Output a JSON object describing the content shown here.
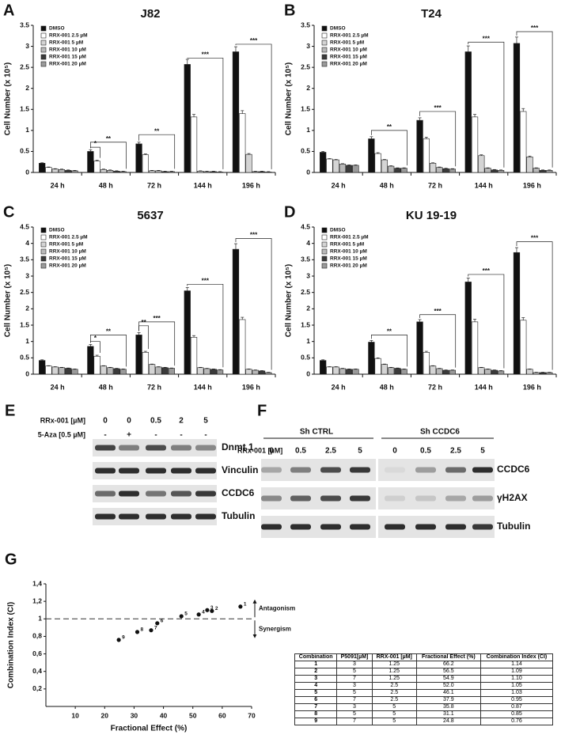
{
  "chart_data": [
    {
      "type": "bar",
      "label": "A",
      "title": "J82",
      "y_label": "Cell Number (x 10⁵)",
      "categories": [
        "24 h",
        "48 h",
        "72 h",
        "144 h",
        "196 h"
      ],
      "ylim": [
        0,
        3.5
      ],
      "yticks": [
        0,
        0.5,
        1,
        1.5,
        2,
        2.5,
        3,
        3.5
      ],
      "series": [
        {
          "name": "DMSO",
          "color": "#111111",
          "values": [
            0.22,
            0.5,
            0.68,
            2.57,
            2.87
          ],
          "errors": [
            0.01,
            0.04,
            0.04,
            0.12,
            0.12
          ]
        },
        {
          "name": "RRX-001 2.5 µM",
          "color": "#ffffff",
          "values": [
            0.12,
            0.27,
            0.42,
            1.32,
            1.4
          ],
          "errors": [
            0.01,
            0.02,
            0.02,
            0.06,
            0.07
          ]
        },
        {
          "name": "RRX-001 5 µM",
          "color": "#d4d4d4",
          "values": [
            0.08,
            0.07,
            0.04,
            0.03,
            0.43
          ],
          "errors": [
            0.01,
            0.01,
            0.01,
            0.01,
            0.02
          ]
        },
        {
          "name": "RRX-001 10 µM",
          "color": "#b8b8b8",
          "values": [
            0.07,
            0.05,
            0.04,
            0.02,
            0.02
          ],
          "errors": [
            0.01,
            0.01,
            0.01,
            0.01,
            0.01
          ]
        },
        {
          "name": "RRX-001 15 µM",
          "color": "#3a3a3a",
          "values": [
            0.05,
            0.03,
            0.02,
            0.02,
            0.02
          ],
          "errors": [
            0.01,
            0.01,
            0.01,
            0.01,
            0.01
          ]
        },
        {
          "name": "RRX-001 20 µM",
          "color": "#9a9a9a",
          "values": [
            0.04,
            0.02,
            0.02,
            0.01,
            0.01
          ],
          "errors": [
            0.01,
            0.01,
            0.01,
            0.01,
            0.01
          ]
        }
      ],
      "annotations": [
        {
          "text": "*",
          "category": 1,
          "series_span": [
            0,
            1
          ],
          "y": 0.6
        },
        {
          "text": "**",
          "category": 1,
          "series_span": [
            0,
            5
          ],
          "y": 0.72
        },
        {
          "text": "**",
          "category": 2,
          "series_span": [
            0,
            5
          ],
          "y": 0.9
        },
        {
          "text": "***",
          "category": 3,
          "series_span": [
            0,
            5
          ],
          "y": 2.72
        },
        {
          "text": "***",
          "category": 4,
          "series_span": [
            0,
            5
          ],
          "y": 3.05
        }
      ]
    },
    {
      "type": "bar",
      "label": "B",
      "title": "T24",
      "y_label": "Cell Number (x 10⁵)",
      "categories": [
        "24 h",
        "48 h",
        "72 h",
        "144 h",
        "196 h"
      ],
      "ylim": [
        0,
        3.5
      ],
      "yticks": [
        0,
        0.5,
        1,
        1.5,
        2,
        2.5,
        3,
        3.5
      ],
      "series": [
        {
          "name": "DMSO",
          "color": "#111111",
          "values": [
            0.48,
            0.8,
            1.24,
            2.87,
            3.07
          ],
          "errors": [
            0.02,
            0.05,
            0.06,
            0.14,
            0.15
          ]
        },
        {
          "name": "RRX-001 2.5 µM",
          "color": "#ffffff",
          "values": [
            0.32,
            0.45,
            0.8,
            1.32,
            1.45
          ],
          "errors": [
            0.01,
            0.02,
            0.04,
            0.06,
            0.07
          ]
        },
        {
          "name": "RRX-001 5 µM",
          "color": "#d4d4d4",
          "values": [
            0.3,
            0.3,
            0.22,
            0.4,
            0.37
          ],
          "errors": [
            0.01,
            0.01,
            0.01,
            0.02,
            0.02
          ]
        },
        {
          "name": "RRX-001 10 µM",
          "color": "#b8b8b8",
          "values": [
            0.2,
            0.15,
            0.12,
            0.1,
            0.1
          ],
          "errors": [
            0.01,
            0.01,
            0.01,
            0.01,
            0.01
          ]
        },
        {
          "name": "RRX-001 15 µM",
          "color": "#3a3a3a",
          "values": [
            0.17,
            0.1,
            0.09,
            0.06,
            0.05
          ],
          "errors": [
            0.01,
            0.01,
            0.01,
            0.01,
            0.01
          ]
        },
        {
          "name": "RRX-001 20 µM",
          "color": "#9a9a9a",
          "values": [
            0.17,
            0.1,
            0.08,
            0.05,
            0.05
          ],
          "errors": [
            0.01,
            0.01,
            0.01,
            0.01,
            0.01
          ]
        }
      ],
      "annotations": [
        {
          "text": "**",
          "category": 1,
          "series_span": [
            0,
            5
          ],
          "y": 1.0
        },
        {
          "text": "***",
          "category": 2,
          "series_span": [
            0,
            5
          ],
          "y": 1.45
        },
        {
          "text": "***",
          "category": 3,
          "series_span": [
            0,
            5
          ],
          "y": 3.1
        },
        {
          "text": "***",
          "category": 4,
          "series_span": [
            0,
            5
          ],
          "y": 3.35
        }
      ]
    },
    {
      "type": "bar",
      "label": "C",
      "title": "5637",
      "y_label": "Cell Number (x 10⁵)",
      "categories": [
        "24 h",
        "48 h",
        "72 h",
        "144 h",
        "196 h"
      ],
      "ylim": [
        0,
        4.5
      ],
      "yticks": [
        0,
        0.5,
        1,
        1.5,
        2,
        2.5,
        3,
        3.5,
        4,
        4.5
      ],
      "series": [
        {
          "name": "DMSO",
          "color": "#111111",
          "values": [
            0.42,
            0.85,
            1.2,
            2.55,
            3.82
          ],
          "errors": [
            0.02,
            0.06,
            0.07,
            0.1,
            0.17
          ]
        },
        {
          "name": "RRX-001 2.5 µM",
          "color": "#ffffff",
          "values": [
            0.25,
            0.55,
            0.67,
            1.13,
            1.67
          ],
          "errors": [
            0.01,
            0.03,
            0.03,
            0.05,
            0.07
          ]
        },
        {
          "name": "RRX-001 5 µM",
          "color": "#d4d4d4",
          "values": [
            0.22,
            0.25,
            0.3,
            0.2,
            0.15
          ],
          "errors": [
            0.01,
            0.01,
            0.01,
            0.01,
            0.01
          ]
        },
        {
          "name": "RRX-001 10 µM",
          "color": "#b8b8b8",
          "values": [
            0.2,
            0.2,
            0.22,
            0.17,
            0.12
          ],
          "errors": [
            0.01,
            0.01,
            0.01,
            0.01,
            0.01
          ]
        },
        {
          "name": "RRX-001 15 µM",
          "color": "#3a3a3a",
          "values": [
            0.18,
            0.17,
            0.2,
            0.15,
            0.1
          ],
          "errors": [
            0.01,
            0.01,
            0.01,
            0.01,
            0.01
          ]
        },
        {
          "name": "RRX-001 20 µM",
          "color": "#9a9a9a",
          "values": [
            0.15,
            0.15,
            0.18,
            0.13,
            0.05
          ],
          "errors": [
            0.01,
            0.01,
            0.01,
            0.01,
            0.01
          ]
        }
      ],
      "annotations": [
        {
          "text": "*",
          "category": 1,
          "series_span": [
            0,
            1
          ],
          "y": 1.0
        },
        {
          "text": "**",
          "category": 1,
          "series_span": [
            0,
            5
          ],
          "y": 1.2
        },
        {
          "text": "**",
          "category": 2,
          "series_span": [
            0,
            1
          ],
          "y": 1.48
        },
        {
          "text": "***",
          "category": 2,
          "series_span": [
            0,
            5
          ],
          "y": 1.6
        },
        {
          "text": "***",
          "category": 3,
          "series_span": [
            0,
            5
          ],
          "y": 2.75
        },
        {
          "text": "***",
          "category": 4,
          "series_span": [
            0,
            5
          ],
          "y": 4.15
        }
      ]
    },
    {
      "type": "bar",
      "label": "D",
      "title": "KU 19-19",
      "y_label": "Cell Number (x 10⁵)",
      "categories": [
        "24 h",
        "48 h",
        "72 h",
        "144 h",
        "196 h"
      ],
      "ylim": [
        0,
        4.5
      ],
      "yticks": [
        0,
        0.5,
        1,
        1.5,
        2,
        2.5,
        3,
        3.5,
        4,
        4.5
      ],
      "series": [
        {
          "name": "DMSO",
          "color": "#111111",
          "values": [
            0.42,
            0.98,
            1.6,
            2.82,
            3.72
          ],
          "errors": [
            0.02,
            0.05,
            0.07,
            0.12,
            0.15
          ]
        },
        {
          "name": "RRX-001 2.5 µM",
          "color": "#ffffff",
          "values": [
            0.22,
            0.48,
            0.67,
            1.6,
            1.65
          ],
          "errors": [
            0.01,
            0.02,
            0.03,
            0.08,
            0.08
          ]
        },
        {
          "name": "RRX-001 5 µM",
          "color": "#d4d4d4",
          "values": [
            0.22,
            0.3,
            0.25,
            0.2,
            0.15
          ],
          "errors": [
            0.01,
            0.01,
            0.01,
            0.01,
            0.01
          ]
        },
        {
          "name": "RRX-001 10 µM",
          "color": "#b8b8b8",
          "values": [
            0.17,
            0.2,
            0.17,
            0.15,
            0.05
          ],
          "errors": [
            0.01,
            0.01,
            0.01,
            0.01,
            0.01
          ]
        },
        {
          "name": "RRX-001 15 µM",
          "color": "#3a3a3a",
          "values": [
            0.15,
            0.18,
            0.12,
            0.12,
            0.05
          ],
          "errors": [
            0.01,
            0.01,
            0.01,
            0.01,
            0.01
          ]
        },
        {
          "name": "RRX-001 20 µM",
          "color": "#9a9a9a",
          "values": [
            0.15,
            0.15,
            0.12,
            0.1,
            0.05
          ],
          "errors": [
            0.01,
            0.01,
            0.01,
            0.01,
            0.01
          ]
        }
      ],
      "annotations": [
        {
          "text": "**",
          "category": 1,
          "series_span": [
            0,
            5
          ],
          "y": 1.2
        },
        {
          "text": "***",
          "category": 2,
          "series_span": [
            0,
            5
          ],
          "y": 1.82
        },
        {
          "text": "***",
          "category": 3,
          "series_span": [
            0,
            5
          ],
          "y": 3.05
        },
        {
          "text": "***",
          "category": 4,
          "series_span": [
            0,
            5
          ],
          "y": 4.05
        }
      ]
    },
    {
      "type": "scatter",
      "label": "G",
      "x_label": "Fractional Effect (%)",
      "y_label": "Combination Index (CI)",
      "x": [
        66.2,
        56.5,
        54.9,
        52.0,
        46.1,
        37.9,
        35.8,
        31.1,
        24.8
      ],
      "values": [
        1.14,
        1.09,
        1.1,
        1.05,
        1.03,
        0.95,
        0.87,
        0.85,
        0.76
      ],
      "point_labels": [
        "1",
        "2",
        "3",
        "4",
        "5",
        "6",
        "7",
        "8",
        "9"
      ],
      "color": "#111111",
      "xlim": [
        0,
        70
      ],
      "xticks": [
        10,
        20,
        30,
        40,
        50,
        60,
        70
      ],
      "ylim": [
        0,
        1.4
      ],
      "yticks": [
        {
          "value": 0.2,
          "label": "0,2"
        },
        {
          "value": 0.4,
          "label": "0,4"
        },
        {
          "value": 0.6,
          "label": "0,6"
        },
        {
          "value": 0.8,
          "label": "0,8"
        },
        1,
        {
          "value": 1.2,
          "label": "1,2"
        },
        {
          "value": 1.4,
          "label": "1,4"
        }
      ],
      "reference_line": 1,
      "annotations": [
        "Antagonism",
        "Synergism"
      ]
    }
  ],
  "blot_E": {
    "label": "E",
    "treatments": [
      {
        "name": "RRx-001 [µM]",
        "levels": [
          "0",
          "0",
          "0.5",
          "2",
          "5"
        ]
      },
      {
        "name": "5-Aza [0.5 µM]",
        "levels": [
          "-",
          "+",
          "-",
          "-",
          "-"
        ]
      }
    ],
    "bands": [
      "Dnmt 1",
      "Vinculin",
      "CCDC6",
      "Tubulin"
    ]
  },
  "blot_F": {
    "label": "F",
    "groups": [
      "Sh CTRL",
      "Sh CCDC6"
    ],
    "treatment": "RRx-001 [µM]",
    "levels": [
      "0",
      "0.5",
      "2.5",
      "5",
      "0",
      "0.5",
      "2.5",
      "5"
    ],
    "bands": [
      "CCDC6",
      "γH2AX",
      "Tubulin"
    ]
  },
  "table_G": {
    "header": [
      "Combination",
      "P5091[µM]",
      "RRX-001 [µM]",
      "Fractional Effect (%)",
      "Combination Index (CI)"
    ],
    "rows": [
      [
        "1",
        "3",
        "1.25",
        "66.2",
        "1.14"
      ],
      [
        "2",
        "5",
        "1.25",
        "56.5",
        "1.09"
      ],
      [
        "3",
        "7",
        "1.25",
        "54.9",
        "1.10"
      ],
      [
        "4",
        "3",
        "2.5",
        "52.0",
        "1.05"
      ],
      [
        "5",
        "5",
        "2.5",
        "46.1",
        "1.03"
      ],
      [
        "6",
        "7",
        "2.5",
        "37.9",
        "0.95"
      ],
      [
        "7",
        "3",
        "5",
        "35.8",
        "0.87"
      ],
      [
        "8",
        "5",
        "5",
        "31.1",
        "0.85"
      ],
      [
        "9",
        "7",
        "5",
        "24.8",
        "0.76"
      ]
    ]
  }
}
